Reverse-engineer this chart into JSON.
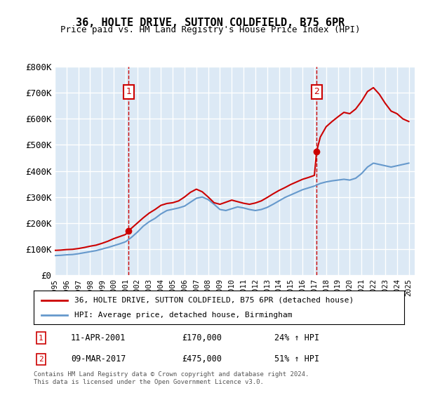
{
  "title": "36, HOLTE DRIVE, SUTTON COLDFIELD, B75 6PR",
  "subtitle": "Price paid vs. HM Land Registry's House Price Index (HPI)",
  "legend_line1": "36, HOLTE DRIVE, SUTTON COLDFIELD, B75 6PR (detached house)",
  "legend_line2": "HPI: Average price, detached house, Birmingham",
  "annotation1_label": "1",
  "annotation1_date": "11-APR-2001",
  "annotation1_price": "£170,000",
  "annotation1_hpi": "24% ↑ HPI",
  "annotation2_label": "2",
  "annotation2_date": "09-MAR-2017",
  "annotation2_price": "£475,000",
  "annotation2_hpi": "51% ↑ HPI",
  "footer": "Contains HM Land Registry data © Crown copyright and database right 2024.\nThis data is licensed under the Open Government Licence v3.0.",
  "plot_bg_color": "#dce9f5",
  "fig_bg_color": "#ffffff",
  "red_color": "#cc0000",
  "blue_color": "#6699cc",
  "grid_color": "#ffffff",
  "annotation_box_color": "#cc0000",
  "dashed_line_color": "#cc0000",
  "ylim": [
    0,
    800000
  ],
  "yticks": [
    0,
    100000,
    200000,
    300000,
    400000,
    500000,
    600000,
    700000,
    800000
  ],
  "ytick_labels": [
    "£0",
    "£100K",
    "£200K",
    "£300K",
    "£400K",
    "£500K",
    "£600K",
    "£700K",
    "£800K"
  ],
  "xlim_start": 1995.0,
  "xlim_end": 2025.5,
  "sale1_x": 2001.27,
  "sale1_y": 170000,
  "sale2_x": 2017.19,
  "sale2_y": 475000,
  "hpi_years": [
    1995,
    1995.5,
    1996,
    1996.5,
    1997,
    1997.5,
    1998,
    1998.5,
    1999,
    1999.5,
    2000,
    2000.5,
    2001,
    2001.5,
    2002,
    2002.5,
    2003,
    2003.5,
    2004,
    2004.5,
    2005,
    2005.5,
    2006,
    2006.5,
    2007,
    2007.5,
    2008,
    2008.5,
    2009,
    2009.5,
    2010,
    2010.5,
    2011,
    2011.5,
    2012,
    2012.5,
    2013,
    2013.5,
    2014,
    2014.5,
    2015,
    2015.5,
    2016,
    2016.5,
    2017,
    2017.5,
    2018,
    2018.5,
    2019,
    2019.5,
    2020,
    2020.5,
    2021,
    2021.5,
    2022,
    2022.5,
    2023,
    2023.5,
    2024,
    2024.5,
    2025
  ],
  "hpi_values": [
    75000,
    76000,
    78000,
    79000,
    82000,
    86000,
    90000,
    94000,
    100000,
    106000,
    113000,
    120000,
    128000,
    145000,
    165000,
    188000,
    205000,
    218000,
    235000,
    248000,
    253000,
    258000,
    265000,
    280000,
    295000,
    300000,
    290000,
    272000,
    252000,
    248000,
    255000,
    262000,
    258000,
    252000,
    248000,
    252000,
    260000,
    272000,
    285000,
    298000,
    308000,
    318000,
    328000,
    335000,
    342000,
    352000,
    358000,
    362000,
    365000,
    368000,
    365000,
    372000,
    390000,
    415000,
    430000,
    425000,
    420000,
    415000,
    420000,
    425000,
    430000
  ],
  "red_years": [
    1995,
    1995.5,
    1996,
    1996.5,
    1997,
    1997.5,
    1998,
    1998.5,
    1999,
    1999.5,
    2000,
    2000.5,
    2001,
    2001.27,
    2001.5,
    2002,
    2002.5,
    2003,
    2003.5,
    2004,
    2004.5,
    2005,
    2005.5,
    2006,
    2006.5,
    2007,
    2007.5,
    2008,
    2008.5,
    2009,
    2009.5,
    2010,
    2010.5,
    2011,
    2011.5,
    2012,
    2012.5,
    2013,
    2013.5,
    2014,
    2014.5,
    2015,
    2015.5,
    2016,
    2016.5,
    2017,
    2017.19,
    2017.5,
    2018,
    2018.5,
    2019,
    2019.5,
    2020,
    2020.5,
    2021,
    2021.5,
    2022,
    2022.5,
    2023,
    2023.5,
    2024,
    2024.5,
    2025
  ],
  "red_values": [
    95000,
    96000,
    98000,
    99000,
    102000,
    106000,
    111000,
    115000,
    122000,
    130000,
    140000,
    148000,
    156000,
    170000,
    180000,
    200000,
    220000,
    238000,
    252000,
    268000,
    275000,
    278000,
    285000,
    300000,
    318000,
    330000,
    320000,
    300000,
    278000,
    272000,
    280000,
    288000,
    282000,
    276000,
    272000,
    277000,
    285000,
    298000,
    312000,
    325000,
    336000,
    348000,
    358000,
    368000,
    375000,
    383000,
    475000,
    530000,
    570000,
    590000,
    608000,
    625000,
    620000,
    638000,
    668000,
    705000,
    720000,
    695000,
    660000,
    630000,
    620000,
    600000,
    590000
  ],
  "xtick_years": [
    1995,
    1996,
    1997,
    1998,
    1999,
    2000,
    2001,
    2002,
    2003,
    2004,
    2005,
    2006,
    2007,
    2008,
    2009,
    2010,
    2011,
    2012,
    2013,
    2014,
    2015,
    2016,
    2017,
    2018,
    2019,
    2020,
    2021,
    2022,
    2023,
    2024,
    2025
  ]
}
